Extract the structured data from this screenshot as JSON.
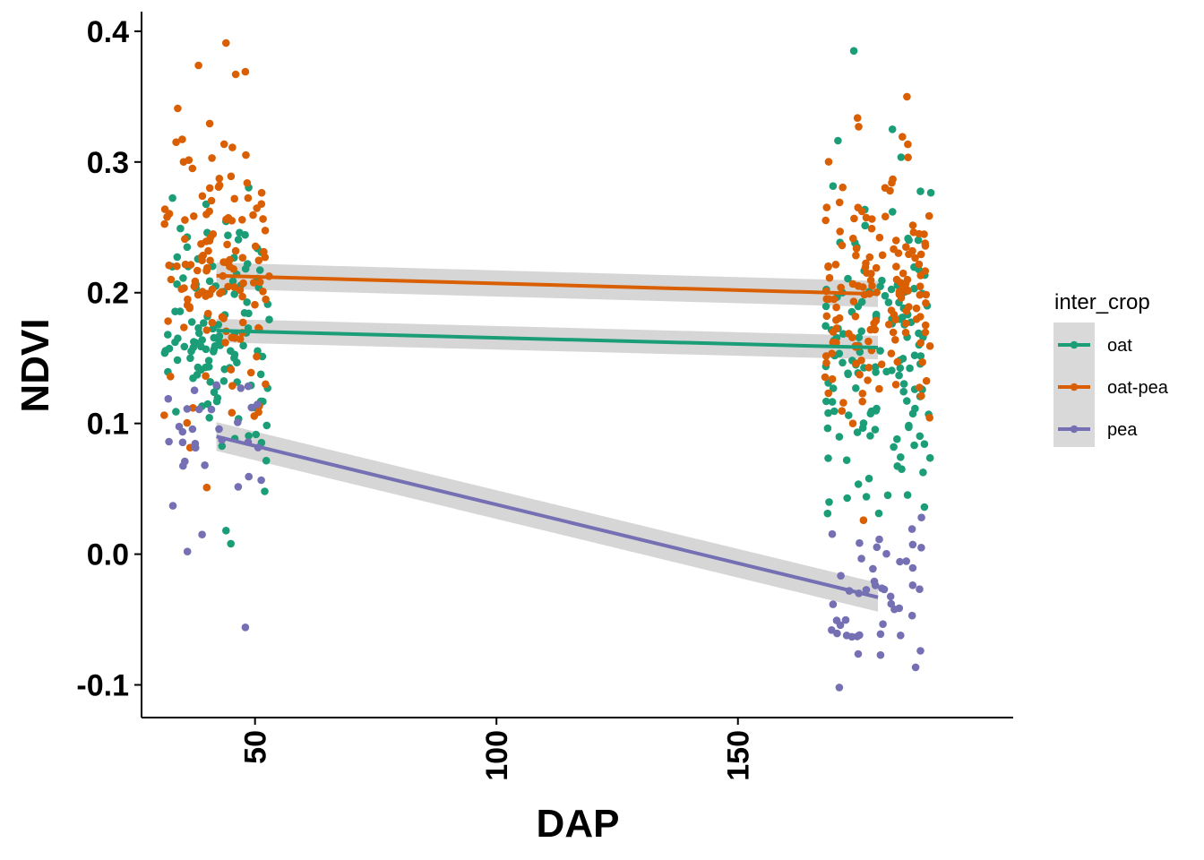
{
  "chart_data": {
    "type": "scatter",
    "xlabel": "DAP",
    "ylabel": "NDVI",
    "xlim": [
      26.5,
      207
    ],
    "ylim": [
      -0.125,
      0.415
    ],
    "x_ticks": [
      50,
      100,
      150
    ],
    "y_ticks": [
      -0.1,
      0.0,
      0.1,
      0.2,
      0.3,
      0.4
    ],
    "x_tick_labels": [
      "50",
      "100",
      "150"
    ],
    "y_tick_labels": [
      "-0.1",
      "0.0",
      "0.1",
      "0.2",
      "0.3",
      "0.4"
    ],
    "grid": false,
    "legend": {
      "title": "inter_crop",
      "placement": "right",
      "entries": [
        "oat",
        "oat-pea",
        "pea"
      ]
    },
    "series": [
      {
        "name": "oat",
        "color": "#1B9E77",
        "trend": {
          "x": [
            42,
            179
          ],
          "y": [
            0.171,
            0.158
          ],
          "ci": 0.009
        },
        "groups": [
          {
            "x_center": 42,
            "jitter": 11,
            "n": 120,
            "y_min": 0.01,
            "y_max": 0.3,
            "y_mean": 0.171,
            "y_sd": 0.05
          },
          {
            "x_center": 179,
            "jitter": 11,
            "n": 140,
            "y_min": 0.03,
            "y_max": 0.385,
            "y_mean": 0.158,
            "y_sd": 0.055
          }
        ],
        "outliers": [
          {
            "x": 44,
            "y": 0.018
          },
          {
            "x": 45,
            "y": 0.008
          },
          {
            "x": 52,
            "y": 0.048
          },
          {
            "x": 174,
            "y": 0.385
          },
          {
            "x": 182,
            "y": 0.325
          }
        ]
      },
      {
        "name": "oat-pea",
        "color": "#D95F02",
        "trend": {
          "x": [
            42,
            179
          ],
          "y": [
            0.213,
            0.199
          ],
          "ci": 0.01
        },
        "groups": [
          {
            "x_center": 42,
            "jitter": 11,
            "n": 130,
            "y_min": 0.05,
            "y_max": 0.39,
            "y_mean": 0.213,
            "y_sd": 0.05
          },
          {
            "x_center": 179,
            "jitter": 11,
            "n": 150,
            "y_min": 0.025,
            "y_max": 0.35,
            "y_mean": 0.199,
            "y_sd": 0.045
          }
        ],
        "outliers": [
          {
            "x": 44,
            "y": 0.391
          },
          {
            "x": 48,
            "y": 0.369
          },
          {
            "x": 46,
            "y": 0.367
          },
          {
            "x": 34,
            "y": 0.341
          },
          {
            "x": 185,
            "y": 0.35
          },
          {
            "x": 175,
            "y": 0.327
          },
          {
            "x": 40,
            "y": 0.051
          },
          {
            "x": 176,
            "y": 0.026
          }
        ]
      },
      {
        "name": "pea",
        "color": "#7570B3",
        "trend": {
          "x": [
            42,
            179
          ],
          "y": [
            0.09,
            -0.033
          ],
          "ci": 0.011
        },
        "groups": [
          {
            "x_center": 42,
            "jitter": 10,
            "n": 30,
            "y_min": 0.0,
            "y_max": 0.13,
            "y_mean": 0.09,
            "y_sd": 0.025
          },
          {
            "x_center": 179,
            "jitter": 10,
            "n": 45,
            "y_min": -0.105,
            "y_max": 0.03,
            "y_mean": -0.033,
            "y_sd": 0.028
          }
        ],
        "outliers": [
          {
            "x": 48,
            "y": -0.056
          },
          {
            "x": 36,
            "y": 0.002
          },
          {
            "x": 33,
            "y": 0.037
          },
          {
            "x": 171,
            "y": -0.102
          },
          {
            "x": 188,
            "y": 0.028
          }
        ]
      }
    ]
  }
}
